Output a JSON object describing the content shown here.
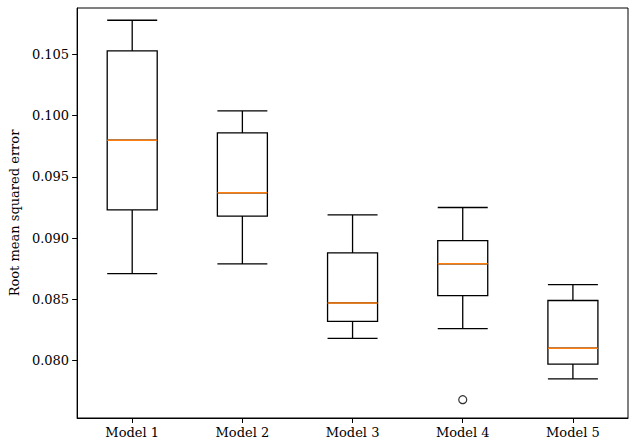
{
  "chart_data": {
    "type": "boxplot",
    "ylabel": "Root mean squared error",
    "categories": [
      "Model 1",
      "Model 2",
      "Model 3",
      "Model 4",
      "Model 5"
    ],
    "boxes": [
      {
        "min": 0.0871,
        "q1": 0.0923,
        "median": 0.098,
        "q3": 0.1053,
        "max": 0.1078
      },
      {
        "min": 0.0879,
        "q1": 0.0918,
        "median": 0.0937,
        "q3": 0.0986,
        "max": 0.1004
      },
      {
        "min": 0.0818,
        "q1": 0.0832,
        "median": 0.0847,
        "q3": 0.0888,
        "max": 0.0919
      },
      {
        "min": 0.0826,
        "q1": 0.0853,
        "median": 0.0879,
        "q3": 0.0898,
        "max": 0.0925
      },
      {
        "min": 0.0785,
        "q1": 0.0797,
        "median": 0.081,
        "q3": 0.0849,
        "max": 0.0862
      }
    ],
    "outliers": [
      [],
      [],
      [],
      [
        0.0768
      ],
      []
    ],
    "color": "#000000",
    "ylim": [
      0.0753,
      0.1088
    ],
    "yticks": [
      {
        "value": 0.08,
        "label": "0.080"
      },
      {
        "value": 0.085,
        "label": "0.085"
      },
      {
        "value": 0.09,
        "label": "0.090"
      },
      {
        "value": 0.095,
        "label": "0.095"
      },
      {
        "value": 0.1,
        "label": "0.100"
      },
      {
        "value": 0.105,
        "label": "0.105"
      }
    ],
    "grid": false
  }
}
